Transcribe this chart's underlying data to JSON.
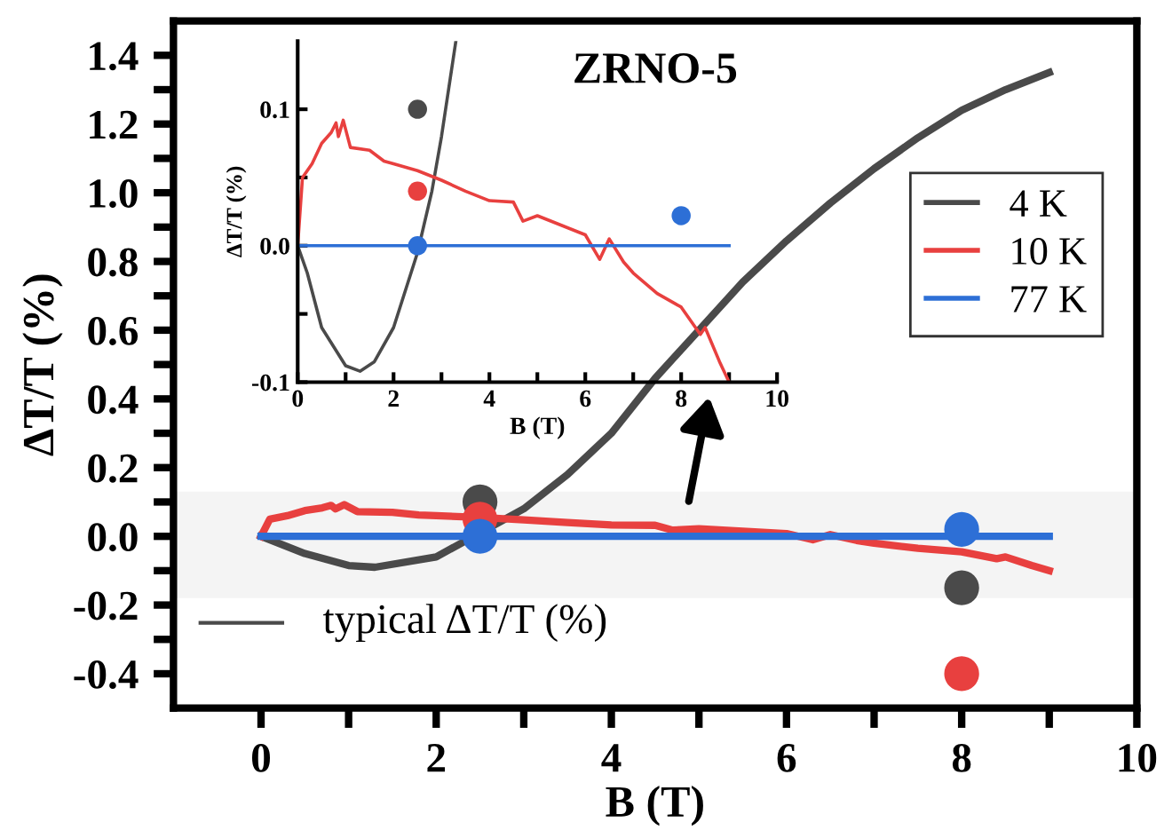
{
  "chart_data": [
    {
      "type": "line",
      "title": "ZRNO-5",
      "xlabel": "B (T)",
      "ylabel": "ΔT/T (%)",
      "xlim": [
        -1,
        10
      ],
      "ylim": [
        -0.5,
        1.5
      ],
      "xticks": [
        0,
        {
          "value": 1,
          "label": null
        },
        2,
        {
          "value": 3,
          "label": null
        },
        4,
        {
          "value": 5,
          "label": null
        },
        6,
        {
          "value": 7,
          "label": null
        },
        8,
        {
          "value": 9,
          "label": null
        },
        10
      ],
      "yticks": [
        -0.4,
        {
          "value": -0.3,
          "label": null
        },
        -0.2,
        {
          "value": -0.1,
          "label": null
        },
        {
          "value": 0,
          "label": "0.0"
        },
        {
          "value": 0.1,
          "label": null
        },
        0.2,
        {
          "value": 0.3,
          "label": null
        },
        0.4,
        {
          "value": 0.5,
          "label": null
        },
        0.6,
        {
          "value": 0.7,
          "label": null
        },
        0.8,
        {
          "value": 0.9,
          "label": null
        },
        {
          "value": 1,
          "label": "1.0"
        },
        {
          "value": 1.1,
          "label": null
        },
        1.2,
        {
          "value": 1.3,
          "label": null
        },
        1.4
      ],
      "legend": "right",
      "grid": false,
      "bands": [
        {
          "axis": "y",
          "from": -0.18,
          "to": 0.13,
          "color": "#f4f4f4"
        }
      ],
      "annotations": [
        "typical ΔT/T (%)"
      ],
      "series": [
        {
          "name": "4 K",
          "color": "#4a4a4a",
          "x": [
            0,
            0.5,
            1,
            1.3,
            2,
            3,
            3.5,
            4,
            4.5,
            5,
            5.5,
            6,
            6.5,
            7,
            7.5,
            8,
            8.5,
            9
          ],
          "values": [
            0,
            -0.05,
            -0.085,
            -0.09,
            -0.06,
            0.08,
            0.18,
            0.3,
            0.46,
            0.6,
            0.74,
            0.86,
            0.97,
            1.07,
            1.16,
            1.24,
            1.3,
            1.35
          ]
        },
        {
          "name": "10 K",
          "color": "#e8403f",
          "x": [
            0,
            0.1,
            0.3,
            0.5,
            0.7,
            0.8,
            0.85,
            0.95,
            1.1,
            1.5,
            1.8,
            2,
            2.5,
            3,
            3.5,
            4,
            4.5,
            4.7,
            5,
            5.5,
            6,
            6.3,
            6.5,
            6.8,
            7,
            7.5,
            8,
            8.4,
            8.5,
            8.8,
            9
          ],
          "values": [
            0,
            0.05,
            0.06,
            0.075,
            0.083,
            0.09,
            0.08,
            0.092,
            0.072,
            0.07,
            0.062,
            0.06,
            0.055,
            0.048,
            0.04,
            0.033,
            0.032,
            0.018,
            0.022,
            0.015,
            0.008,
            -0.01,
            0.005,
            -0.012,
            -0.02,
            -0.035,
            -0.045,
            -0.065,
            -0.06,
            -0.085,
            -0.1
          ]
        },
        {
          "name": "77 K",
          "color": "#2d6fd6",
          "x": [
            0,
            9
          ],
          "values": [
            0,
            0
          ]
        },
        {
          "type": "scatter",
          "color": "#4a4a4a",
          "marker": "circle",
          "x": [
            2.5,
            8
          ],
          "values": [
            0.1,
            -0.15
          ]
        },
        {
          "type": "scatter",
          "color": "#e8403f",
          "marker": "circle",
          "x": [
            2.5,
            8
          ],
          "values": [
            0.05,
            -0.4
          ]
        },
        {
          "type": "scatter",
          "color": "#2d6fd6",
          "marker": "circle",
          "x": [
            2.5,
            8
          ],
          "values": [
            0,
            0.02
          ]
        }
      ]
    },
    {
      "type": "line",
      "xlabel": "B (T)",
      "ylabel": "ΔT/T (%)",
      "xlim": [
        0,
        10
      ],
      "ylim": [
        -0.1,
        0.15
      ],
      "xticks": [
        0,
        {
          "value": 1,
          "label": null
        },
        2,
        {
          "value": 3,
          "label": null
        },
        4,
        {
          "value": 5,
          "label": null
        },
        6,
        {
          "value": 7,
          "label": null
        },
        8,
        {
          "value": 9,
          "label": null
        },
        10
      ],
      "yticks": [
        -0.1,
        {
          "value": -0.05,
          "label": null
        },
        {
          "value": 0,
          "label": "0.0"
        },
        {
          "value": 0.05,
          "label": null
        },
        0.1
      ],
      "legend": false,
      "grid": false,
      "series": [
        {
          "color": "#4a4a4a",
          "x": [
            0,
            0.2,
            0.5,
            1,
            1.3,
            1.6,
            2,
            2.5,
            2.8,
            3.0,
            3.3
          ],
          "values": [
            0,
            -0.02,
            -0.06,
            -0.088,
            -0.092,
            -0.085,
            -0.06,
            -0.005,
            0.04,
            0.08,
            0.15
          ]
        },
        {
          "color": "#e8403f",
          "x": [
            0,
            0.1,
            0.3,
            0.5,
            0.7,
            0.8,
            0.85,
            0.95,
            1.1,
            1.5,
            1.8,
            2,
            2.5,
            3,
            3.5,
            4,
            4.5,
            4.7,
            5,
            5.5,
            6,
            6.3,
            6.5,
            6.8,
            7,
            7.5,
            8,
            8.4,
            8.5,
            8.8,
            9
          ],
          "values": [
            0,
            0.05,
            0.06,
            0.075,
            0.083,
            0.09,
            0.08,
            0.092,
            0.072,
            0.07,
            0.062,
            0.06,
            0.055,
            0.048,
            0.04,
            0.033,
            0.032,
            0.018,
            0.022,
            0.015,
            0.008,
            -0.01,
            0.005,
            -0.012,
            -0.02,
            -0.035,
            -0.045,
            -0.065,
            -0.06,
            -0.085,
            -0.1
          ]
        },
        {
          "color": "#2d6fd6",
          "x": [
            0,
            9
          ],
          "values": [
            0,
            0
          ]
        },
        {
          "type": "scatter",
          "color": "#4a4a4a",
          "marker": "circle",
          "x": [
            2.5
          ],
          "values": [
            0.1
          ]
        },
        {
          "type": "scatter",
          "color": "#e8403f",
          "marker": "circle",
          "x": [
            2.5
          ],
          "values": [
            0.04
          ]
        },
        {
          "type": "scatter",
          "color": "#2d6fd6",
          "marker": "circle",
          "x": [
            2.5,
            8
          ],
          "values": [
            0,
            0.022
          ]
        }
      ]
    }
  ]
}
